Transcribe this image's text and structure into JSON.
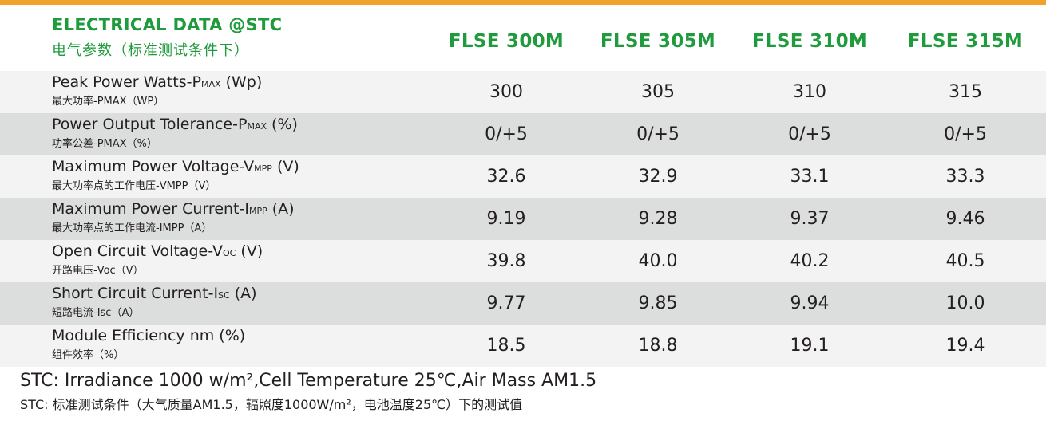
{
  "colors": {
    "accent_bar": "#f0a22a",
    "green": "#1f9a3c",
    "row_shade": "#dcdddd",
    "row_plain": "#f3f3f4"
  },
  "header": {
    "title": "ELECTRICAL DATA @STC",
    "subtitle": "电气参数（标准测试条件下）",
    "models": [
      "FLSE 300M",
      "FLSE 305M",
      "FLSE 310M",
      "FLSE 315M"
    ]
  },
  "rows": [
    {
      "en_main": "Peak Power Watts-P",
      "en_sub": "MAX",
      "en_tail": " (Wp)",
      "cn": "最大功率-PMAX（WP）",
      "values": [
        "300",
        "305",
        "310",
        "315"
      ]
    },
    {
      "en_main": "Power Output Tolerance-P",
      "en_sub": "MAX",
      "en_tail": " (%)",
      "cn": "功率公差-PMAX（%）",
      "values": [
        "0/+5",
        "0/+5",
        "0/+5",
        "0/+5"
      ]
    },
    {
      "en_main": "Maximum Power Voltage-V",
      "en_sub": "MPP",
      "en_tail": " (V)",
      "cn": "最大功率点的工作电压-VMPP（V）",
      "values": [
        "32.6",
        "32.9",
        "33.1",
        "33.3"
      ]
    },
    {
      "en_main": "Maximum Power Current-I",
      "en_sub": "MPP",
      "en_tail": " (A)",
      "cn": "最大功率点的工作电流-IMPP（A）",
      "values": [
        "9.19",
        "9.28",
        "9.37",
        "9.46"
      ]
    },
    {
      "en_main": "Open Circuit Voltage-V",
      "en_sub": "OC",
      "en_tail": " (V)",
      "cn": "开路电压-Voc（V）",
      "values": [
        "39.8",
        "40.0",
        "40.2",
        "40.5"
      ]
    },
    {
      "en_main": "Short Circuit Current-I",
      "en_sub": "SC",
      "en_tail": " (A)",
      "cn": "短路电流-Isc（A）",
      "values": [
        "9.77",
        "9.85",
        "9.94",
        "10.0"
      ]
    },
    {
      "en_main": "Module Efficiency nm (%)",
      "en_sub": "",
      "en_tail": "",
      "cn": "组件效率（%）",
      "values": [
        "18.5",
        "18.8",
        "19.1",
        "19.4"
      ]
    }
  ],
  "footer": {
    "note_en": "STC: Irradiance 1000 w/m²,Cell Temperature 25℃,Air Mass AM1.5",
    "note_cn": "STC: 标准测试条件（大气质量AM1.5，辐照度1000W/m²，电池温度25℃）下的测试值"
  }
}
